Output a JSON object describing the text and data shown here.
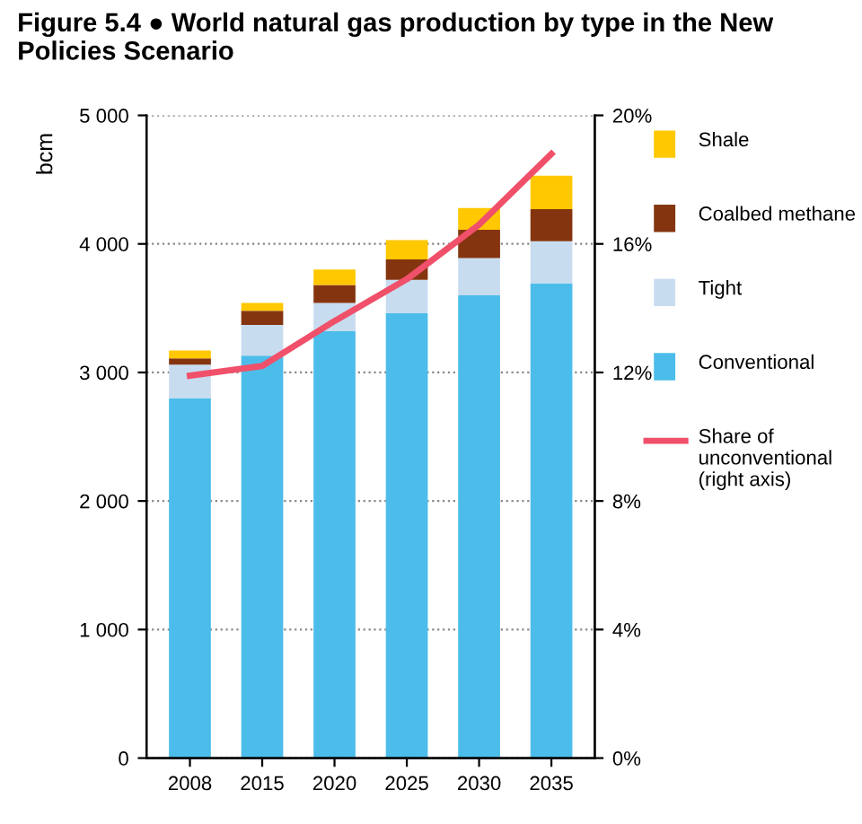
{
  "chart_data": {
    "type": "bar",
    "title": "Figure 5.4 ● World natural gas production by type in the New Policies Scenario",
    "ylabel": "bcm",
    "categories": [
      "2008",
      "2015",
      "2020",
      "2025",
      "2030",
      "2035"
    ],
    "stacked": true,
    "series": [
      {
        "name": "Conventional",
        "color": "#4cbdea",
        "values": [
          2800,
          3130,
          3320,
          3460,
          3600,
          3690
        ]
      },
      {
        "name": "Tight",
        "color": "#c8dcf0",
        "values": [
          260,
          240,
          220,
          260,
          290,
          330
        ]
      },
      {
        "name": "Coalbed methane",
        "color": "#843510",
        "values": [
          50,
          110,
          140,
          160,
          220,
          250
        ]
      },
      {
        "name": "Shale",
        "color": "#ffc800",
        "values": [
          60,
          60,
          120,
          150,
          170,
          260
        ]
      },
      {
        "name": "Share of unconventional (right axis)",
        "type": "line",
        "axis": "y2",
        "color": "#f0506a",
        "values": [
          11.9,
          12.2,
          13.6,
          14.9,
          16.6,
          18.8
        ]
      }
    ],
    "ylim": [
      0,
      5000
    ],
    "yticks": [
      0,
      {
        "value": 1000,
        "label": "1 000"
      },
      {
        "value": 2000,
        "label": "2 000"
      },
      {
        "value": 3000,
        "label": "3 000"
      },
      {
        "value": 4000,
        "label": "4 000"
      },
      {
        "value": 5000,
        "label": "5 000"
      }
    ],
    "y2lim": [
      0,
      20
    ],
    "y2ticks": [
      {
        "value": 0,
        "label": "0%"
      },
      {
        "value": 4,
        "label": "4%"
      },
      {
        "value": 8,
        "label": "8%"
      },
      {
        "value": 12,
        "label": "12%"
      },
      {
        "value": 16,
        "label": "16%"
      },
      {
        "value": 20,
        "label": "20%"
      }
    ],
    "grid": "y",
    "legend": "right"
  }
}
